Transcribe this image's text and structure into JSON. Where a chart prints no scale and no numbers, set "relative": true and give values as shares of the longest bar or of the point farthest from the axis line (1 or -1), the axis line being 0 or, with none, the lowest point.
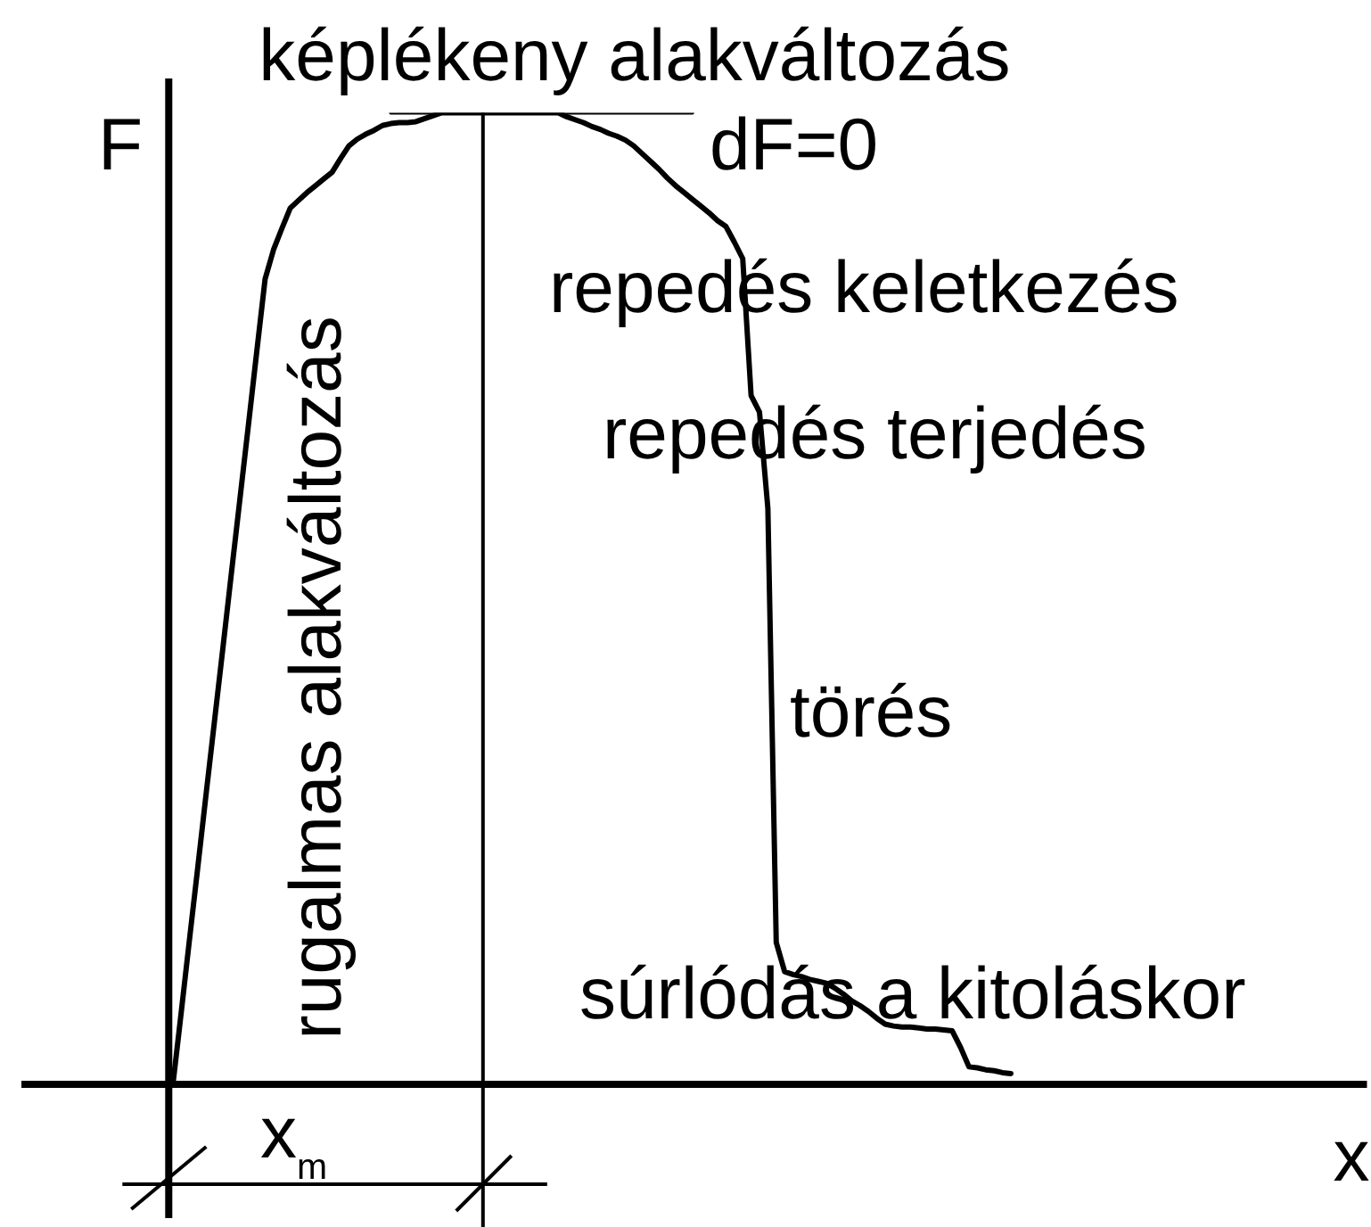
{
  "chart_data": {
    "type": "line",
    "relative": true,
    "xlabel": "x",
    "ylabel": "F",
    "marker": "none",
    "line_style": "solid",
    "categories": [
      null,
      null,
      null,
      null,
      null,
      null,
      null,
      null,
      null,
      null,
      null,
      null,
      null,
      null,
      null,
      null,
      null,
      null,
      null,
      null,
      null,
      null,
      null,
      null,
      null,
      null,
      null,
      null,
      null,
      null,
      null,
      null,
      null,
      null,
      null,
      null,
      null,
      null,
      null,
      null,
      null,
      null,
      null,
      null,
      null,
      null,
      null,
      null,
      null,
      null,
      null,
      null,
      null,
      null,
      null,
      null,
      null,
      null,
      null,
      null,
      null,
      null,
      null,
      null,
      null,
      null,
      null,
      null,
      null,
      null,
      null,
      null,
      null,
      null,
      null,
      null,
      null,
      null,
      null,
      null,
      null,
      null,
      null,
      null,
      null,
      null,
      null,
      null,
      null,
      null,
      null,
      null,
      null,
      null,
      null,
      null,
      null,
      null,
      null,
      null,
      null,
      null,
      null,
      null,
      null,
      null,
      null,
      null,
      null,
      null,
      null,
      null,
      null,
      null,
      null,
      null,
      null,
      null,
      null,
      null,
      null,
      null,
      null,
      null,
      null,
      null,
      null,
      null,
      null,
      null,
      null,
      null,
      null,
      null,
      null,
      null,
      null,
      null,
      null,
      null,
      null,
      null,
      null
    ],
    "series": [
      {
        "color": "#000000",
        "values": [
          0,
          0.075,
          0.151,
          0.226,
          0.302,
          0.377,
          0.452,
          0.528,
          0.603,
          0.678,
          0.754,
          0.829,
          0.859,
          0.881,
          0.902,
          0.91,
          0.918,
          0.925,
          0.932,
          0.939,
          0.953,
          0.966,
          0.973,
          0.978,
          0.982,
          0.987,
          0.989,
          0.99,
          0.99,
          0.991,
          0.994,
          0.997,
          1,
          1,
          1,
          1,
          1,
          1,
          1,
          1,
          1,
          1,
          1,
          1,
          1,
          1,
          1,
          0.996,
          0.993,
          0.99,
          0.986,
          0.983,
          0.979,
          0.976,
          0.972,
          0.966,
          0.958,
          0.95,
          0.942,
          0.933,
          0.925,
          0.918,
          0.911,
          0.904,
          0.897,
          0.889,
          0.883,
          0.867,
          0.85,
          0.709,
          0.692,
          0.593,
          0.146,
          0.116,
          0.113,
          0.111,
          0.108,
          0.106,
          0.104,
          0.099,
          0.093,
          0.086,
          0.081,
          0.075,
          0.068,
          0.062,
          0.06,
          0.059,
          0.059,
          0.058,
          0.057,
          0.057,
          0.056,
          0.055,
          0.038,
          0.018,
          0.017,
          0.015,
          0.014,
          0.012,
          0.011,
          null,
          null,
          null,
          null,
          null,
          null,
          null,
          null,
          null,
          null,
          null,
          null,
          null,
          null,
          null,
          null,
          null,
          null,
          null,
          null,
          null,
          null,
          null,
          null,
          null,
          null,
          null,
          null,
          null,
          null,
          null,
          null,
          null,
          null,
          null,
          null,
          null,
          null,
          null,
          null,
          null,
          null
        ]
      },
      {
        "color": "#000000",
        "values": [
          null,
          null,
          null,
          null,
          null,
          null,
          null,
          null,
          null,
          null,
          null,
          null,
          null,
          null,
          null,
          null,
          null,
          null,
          null,
          null,
          null,
          null,
          null,
          null,
          null,
          null,
          1,
          1,
          1,
          1,
          1,
          1,
          1,
          1,
          1,
          1,
          1,
          1,
          1,
          1,
          1,
          1,
          1,
          1,
          1,
          1,
          1,
          1,
          1,
          1,
          1,
          1,
          1,
          1,
          1,
          1,
          1,
          1,
          1,
          1,
          1,
          1,
          1,
          null,
          null,
          null,
          null,
          null,
          null,
          null,
          null,
          null,
          null,
          null,
          null,
          null,
          null,
          null,
          null,
          null,
          null,
          null,
          null,
          null,
          null,
          null,
          null,
          null,
          null,
          null,
          null,
          null,
          null,
          null,
          null,
          null,
          null,
          null,
          null,
          null,
          null,
          null,
          null,
          null,
          null,
          null,
          null,
          null,
          null,
          null,
          null,
          null,
          null,
          null,
          null,
          null,
          null,
          null,
          null,
          null,
          null,
          null,
          null,
          null,
          null,
          null,
          null,
          null,
          null,
          null,
          null,
          null,
          null,
          null,
          null,
          null,
          null,
          null,
          null,
          null,
          null,
          null,
          null
        ]
      }
    ],
    "annotations": [
      "képlékeny alakváltozás",
      "dF=0",
      "repedés keletkezés",
      "repedés terjedés",
      "törés",
      "súrlódás a kitoláskor",
      "rugalmas alakváltozás",
      "x$_{m}$"
    ]
  }
}
